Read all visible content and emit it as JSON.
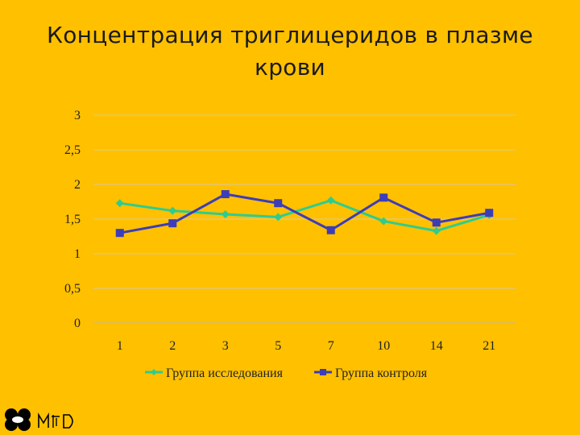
{
  "slide": {
    "title_line1": "Концентрация триглицеридов в плазме",
    "title_line2": "крови"
  },
  "chart_data": {
    "type": "line",
    "title": "",
    "xlabel": "",
    "ylabel": "",
    "categories": [
      "1",
      "2",
      "3",
      "5",
      "7",
      "10",
      "14",
      "21"
    ],
    "ylim": [
      0,
      3
    ],
    "yticks": [
      "0",
      "0,5",
      "1",
      "1,5",
      "2",
      "2,5",
      "3"
    ],
    "grid": true,
    "legend_position": "bottom",
    "series": [
      {
        "name": "Группа исследования",
        "color": "#2ECC8F",
        "marker": "diamond",
        "values": [
          1.73,
          1.62,
          1.57,
          1.53,
          1.77,
          1.47,
          1.33,
          1.56
        ]
      },
      {
        "name": "Группа контроля",
        "color": "#3D3DB8",
        "marker": "square",
        "values": [
          1.3,
          1.44,
          1.86,
          1.73,
          1.34,
          1.81,
          1.45,
          1.59
        ]
      }
    ]
  },
  "logo": {
    "icon": "company-logo-icon",
    "color": "#000000"
  }
}
